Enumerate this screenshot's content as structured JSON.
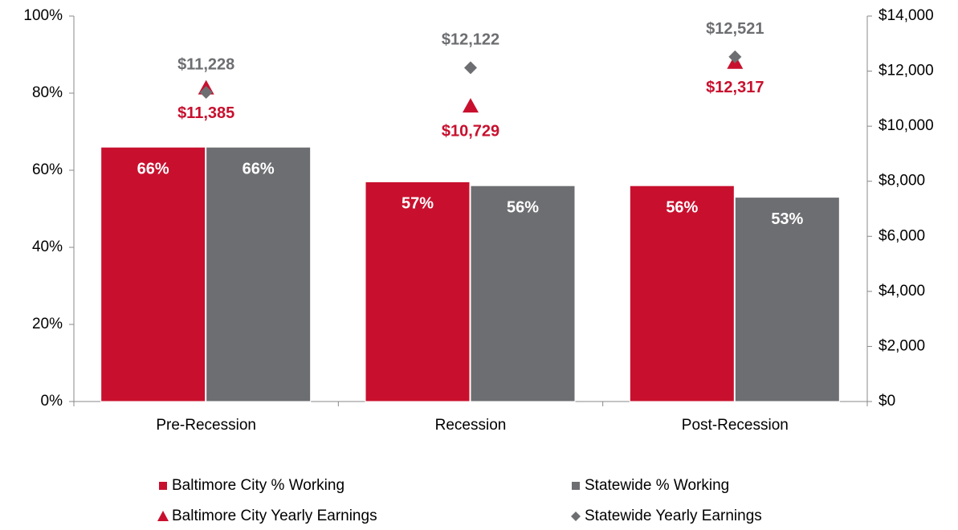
{
  "chart_data": {
    "type": "bar",
    "categories": [
      "Pre-Recession",
      "Recession",
      "Post-Recession"
    ],
    "series": [
      {
        "name": "Baltimore City % Working",
        "color": "#c8102e",
        "type": "bar",
        "values": [
          66,
          57,
          56
        ],
        "value_labels": [
          "66%",
          "57%",
          "56%"
        ]
      },
      {
        "name": "Statewide % Working",
        "color": "#6d6e71",
        "type": "bar",
        "values": [
          66,
          56,
          53
        ],
        "value_labels": [
          "66%",
          "56%",
          "53%"
        ]
      },
      {
        "name": "Baltimore City Yearly Earnings",
        "color": "#c8102e",
        "type": "scatter",
        "marker": "triangle",
        "axis": "y2",
        "values": [
          11385,
          10729,
          12317
        ],
        "value_labels": [
          "$11,385",
          "$10,729",
          "$12,317"
        ]
      },
      {
        "name": "Statewide Yearly Earnings",
        "color": "#6d6e71",
        "type": "scatter",
        "marker": "diamond",
        "axis": "y2",
        "values": [
          11228,
          12122,
          12521
        ],
        "value_labels": [
          "$11,228",
          "$12,122",
          "$12,521"
        ]
      }
    ],
    "ylim": [
      0,
      100
    ],
    "yticks": [
      {
        "value": 0,
        "label": "0%"
      },
      {
        "value": 20,
        "label": "20%"
      },
      {
        "value": 40,
        "label": "40%"
      },
      {
        "value": 60,
        "label": "60%"
      },
      {
        "value": 80,
        "label": "80%"
      },
      {
        "value": 100,
        "label": "100%"
      }
    ],
    "y2lim": [
      0,
      14000
    ],
    "y2ticks": [
      {
        "value": 0,
        "label": "$0"
      },
      {
        "value": 2000,
        "label": "$2,000"
      },
      {
        "value": 4000,
        "label": "$4,000"
      },
      {
        "value": 6000,
        "label": "$6,000"
      },
      {
        "value": 8000,
        "label": "$8,000"
      },
      {
        "value": 10000,
        "label": "$10,000"
      },
      {
        "value": 12000,
        "label": "$12,000"
      },
      {
        "value": 14000,
        "label": "$14,000"
      }
    ],
    "legend": "bottom"
  }
}
